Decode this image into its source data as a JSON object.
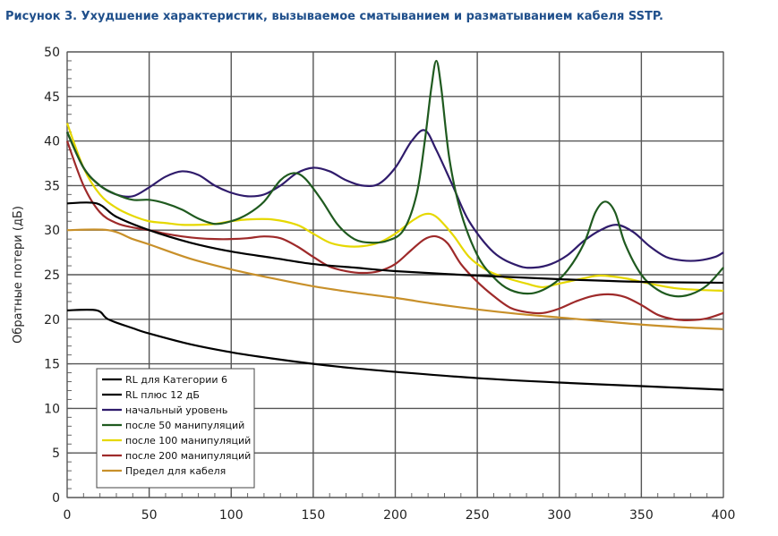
{
  "chart_data": {
    "type": "line",
    "title": "Рисунок 3. Ухудшение характеристик, вызываемое сматыванием и разматыванием кабеля SSTP.",
    "xlabel": "",
    "ylabel": "Обратные потери (дБ)",
    "xlim": [
      0,
      400
    ],
    "ylim": [
      0,
      50
    ],
    "xticks": [
      0,
      50,
      100,
      150,
      200,
      250,
      300,
      350,
      400
    ],
    "yticks": [
      0,
      5,
      10,
      15,
      20,
      25,
      30,
      35,
      40,
      45,
      50
    ],
    "grid": true,
    "legend_position": "bottom-left",
    "series": [
      {
        "name": "RL для Категории 6",
        "color": "#000000",
        "points": [
          [
            0,
            33
          ],
          [
            18,
            33
          ],
          [
            30,
            31.5
          ],
          [
            50,
            30
          ],
          [
            75,
            28.6
          ],
          [
            100,
            27.6
          ],
          [
            125,
            26.9
          ],
          [
            150,
            26.2
          ],
          [
            175,
            25.8
          ],
          [
            200,
            25.4
          ],
          [
            250,
            24.9
          ],
          [
            300,
            24.5
          ],
          [
            350,
            24.2
          ],
          [
            400,
            24.1
          ]
        ]
      },
      {
        "name": "RL плюс 12 дБ",
        "color": "#000000",
        "points": [
          [
            0,
            21
          ],
          [
            18,
            21
          ],
          [
            25,
            20
          ],
          [
            40,
            19
          ],
          [
            50,
            18.4
          ],
          [
            75,
            17.2
          ],
          [
            100,
            16.3
          ],
          [
            125,
            15.6
          ],
          [
            150,
            15
          ],
          [
            175,
            14.5
          ],
          [
            200,
            14.1
          ],
          [
            250,
            13.4
          ],
          [
            300,
            12.9
          ],
          [
            350,
            12.5
          ],
          [
            400,
            12.1
          ]
        ]
      },
      {
        "name": "начальный уровень",
        "color": "#2f1b6b",
        "points": [
          [
            0,
            41
          ],
          [
            10,
            37
          ],
          [
            20,
            35
          ],
          [
            30,
            34
          ],
          [
            40,
            33.8
          ],
          [
            50,
            34.8
          ],
          [
            60,
            36
          ],
          [
            70,
            36.6
          ],
          [
            80,
            36.2
          ],
          [
            90,
            35
          ],
          [
            100,
            34.2
          ],
          [
            110,
            33.8
          ],
          [
            120,
            34
          ],
          [
            130,
            35
          ],
          [
            140,
            36.4
          ],
          [
            150,
            37
          ],
          [
            160,
            36.6
          ],
          [
            170,
            35.6
          ],
          [
            180,
            35
          ],
          [
            190,
            35.2
          ],
          [
            200,
            37
          ],
          [
            210,
            40
          ],
          [
            218,
            41.2
          ],
          [
            225,
            39
          ],
          [
            235,
            35
          ],
          [
            245,
            31
          ],
          [
            260,
            27.5
          ],
          [
            275,
            26
          ],
          [
            285,
            25.8
          ],
          [
            295,
            26.2
          ],
          [
            305,
            27.2
          ],
          [
            315,
            28.8
          ],
          [
            325,
            30
          ],
          [
            335,
            30.6
          ],
          [
            345,
            29.8
          ],
          [
            355,
            28.2
          ],
          [
            365,
            27
          ],
          [
            375,
            26.6
          ],
          [
            385,
            26.6
          ],
          [
            395,
            27
          ],
          [
            400,
            27.5
          ]
        ]
      },
      {
        "name": "после 50 манипуляций",
        "color": "#1f5a1f",
        "points": [
          [
            0,
            41
          ],
          [
            10,
            37
          ],
          [
            20,
            35
          ],
          [
            30,
            34
          ],
          [
            40,
            33.4
          ],
          [
            50,
            33.4
          ],
          [
            60,
            33
          ],
          [
            70,
            32.3
          ],
          [
            80,
            31.3
          ],
          [
            90,
            30.7
          ],
          [
            100,
            31
          ],
          [
            110,
            31.8
          ],
          [
            120,
            33.2
          ],
          [
            130,
            35.6
          ],
          [
            138,
            36.4
          ],
          [
            145,
            35.8
          ],
          [
            155,
            33.4
          ],
          [
            165,
            30.6
          ],
          [
            175,
            29
          ],
          [
            185,
            28.6
          ],
          [
            195,
            28.8
          ],
          [
            205,
            30
          ],
          [
            213,
            34
          ],
          [
            218,
            40
          ],
          [
            222,
            46
          ],
          [
            225,
            49
          ],
          [
            228,
            46
          ],
          [
            233,
            38
          ],
          [
            240,
            32
          ],
          [
            250,
            27.2
          ],
          [
            260,
            24.7
          ],
          [
            270,
            23.3
          ],
          [
            283,
            22.9
          ],
          [
            295,
            23.8
          ],
          [
            305,
            25.5
          ],
          [
            315,
            28.5
          ],
          [
            322,
            32
          ],
          [
            328,
            33.2
          ],
          [
            334,
            32
          ],
          [
            340,
            28.5
          ],
          [
            350,
            25
          ],
          [
            360,
            23.3
          ],
          [
            370,
            22.6
          ],
          [
            380,
            22.8
          ],
          [
            390,
            23.8
          ],
          [
            400,
            25.8
          ]
        ]
      },
      {
        "name": "после 100 манипуляций",
        "color": "#e6d800",
        "points": [
          [
            0,
            42
          ],
          [
            10,
            37
          ],
          [
            20,
            34
          ],
          [
            30,
            32.5
          ],
          [
            40,
            31.6
          ],
          [
            50,
            31
          ],
          [
            60,
            30.8
          ],
          [
            70,
            30.6
          ],
          [
            80,
            30.6
          ],
          [
            90,
            30.7
          ],
          [
            100,
            31
          ],
          [
            110,
            31.2
          ],
          [
            125,
            31.2
          ],
          [
            140,
            30.6
          ],
          [
            150,
            29.6
          ],
          [
            160,
            28.6
          ],
          [
            170,
            28.2
          ],
          [
            180,
            28.2
          ],
          [
            190,
            28.6
          ],
          [
            200,
            29.6
          ],
          [
            210,
            31
          ],
          [
            218,
            31.8
          ],
          [
            225,
            31.5
          ],
          [
            235,
            29.5
          ],
          [
            245,
            27
          ],
          [
            255,
            25.6
          ],
          [
            265,
            24.8
          ],
          [
            280,
            24
          ],
          [
            290,
            23.6
          ],
          [
            300,
            24
          ],
          [
            315,
            24.6
          ],
          [
            325,
            24.9
          ],
          [
            340,
            24.6
          ],
          [
            355,
            24
          ],
          [
            370,
            23.5
          ],
          [
            385,
            23.3
          ],
          [
            400,
            23.2
          ]
        ]
      },
      {
        "name": "после 200 манипуляций",
        "color": "#9e2a2a",
        "points": [
          [
            0,
            40
          ],
          [
            10,
            35
          ],
          [
            20,
            32
          ],
          [
            30,
            30.8
          ],
          [
            40,
            30.3
          ],
          [
            50,
            30
          ],
          [
            60,
            29.6
          ],
          [
            70,
            29.3
          ],
          [
            80,
            29.1
          ],
          [
            90,
            29
          ],
          [
            100,
            29
          ],
          [
            110,
            29.1
          ],
          [
            120,
            29.3
          ],
          [
            130,
            29.1
          ],
          [
            140,
            28.2
          ],
          [
            150,
            27
          ],
          [
            160,
            25.9
          ],
          [
            170,
            25.4
          ],
          [
            180,
            25.2
          ],
          [
            190,
            25.4
          ],
          [
            200,
            26.2
          ],
          [
            210,
            27.8
          ],
          [
            218,
            29
          ],
          [
            225,
            29.3
          ],
          [
            232,
            28.5
          ],
          [
            240,
            26.2
          ],
          [
            250,
            24.2
          ],
          [
            260,
            22.6
          ],
          [
            270,
            21.3
          ],
          [
            280,
            20.8
          ],
          [
            290,
            20.7
          ],
          [
            300,
            21.2
          ],
          [
            310,
            22
          ],
          [
            320,
            22.6
          ],
          [
            330,
            22.8
          ],
          [
            340,
            22.5
          ],
          [
            350,
            21.6
          ],
          [
            360,
            20.5
          ],
          [
            370,
            20
          ],
          [
            380,
            19.9
          ],
          [
            390,
            20.1
          ],
          [
            400,
            20.7
          ]
        ]
      },
      {
        "name": "Предел для кабеля",
        "color": "#c8902a",
        "points": [
          [
            0,
            30
          ],
          [
            25,
            30
          ],
          [
            40,
            29
          ],
          [
            50,
            28.4
          ],
          [
            75,
            26.8
          ],
          [
            100,
            25.6
          ],
          [
            125,
            24.6
          ],
          [
            150,
            23.7
          ],
          [
            175,
            23
          ],
          [
            200,
            22.4
          ],
          [
            225,
            21.7
          ],
          [
            250,
            21.1
          ],
          [
            275,
            20.6
          ],
          [
            300,
            20.2
          ],
          [
            325,
            19.8
          ],
          [
            350,
            19.4
          ],
          [
            375,
            19.1
          ],
          [
            400,
            18.9
          ]
        ]
      }
    ]
  }
}
